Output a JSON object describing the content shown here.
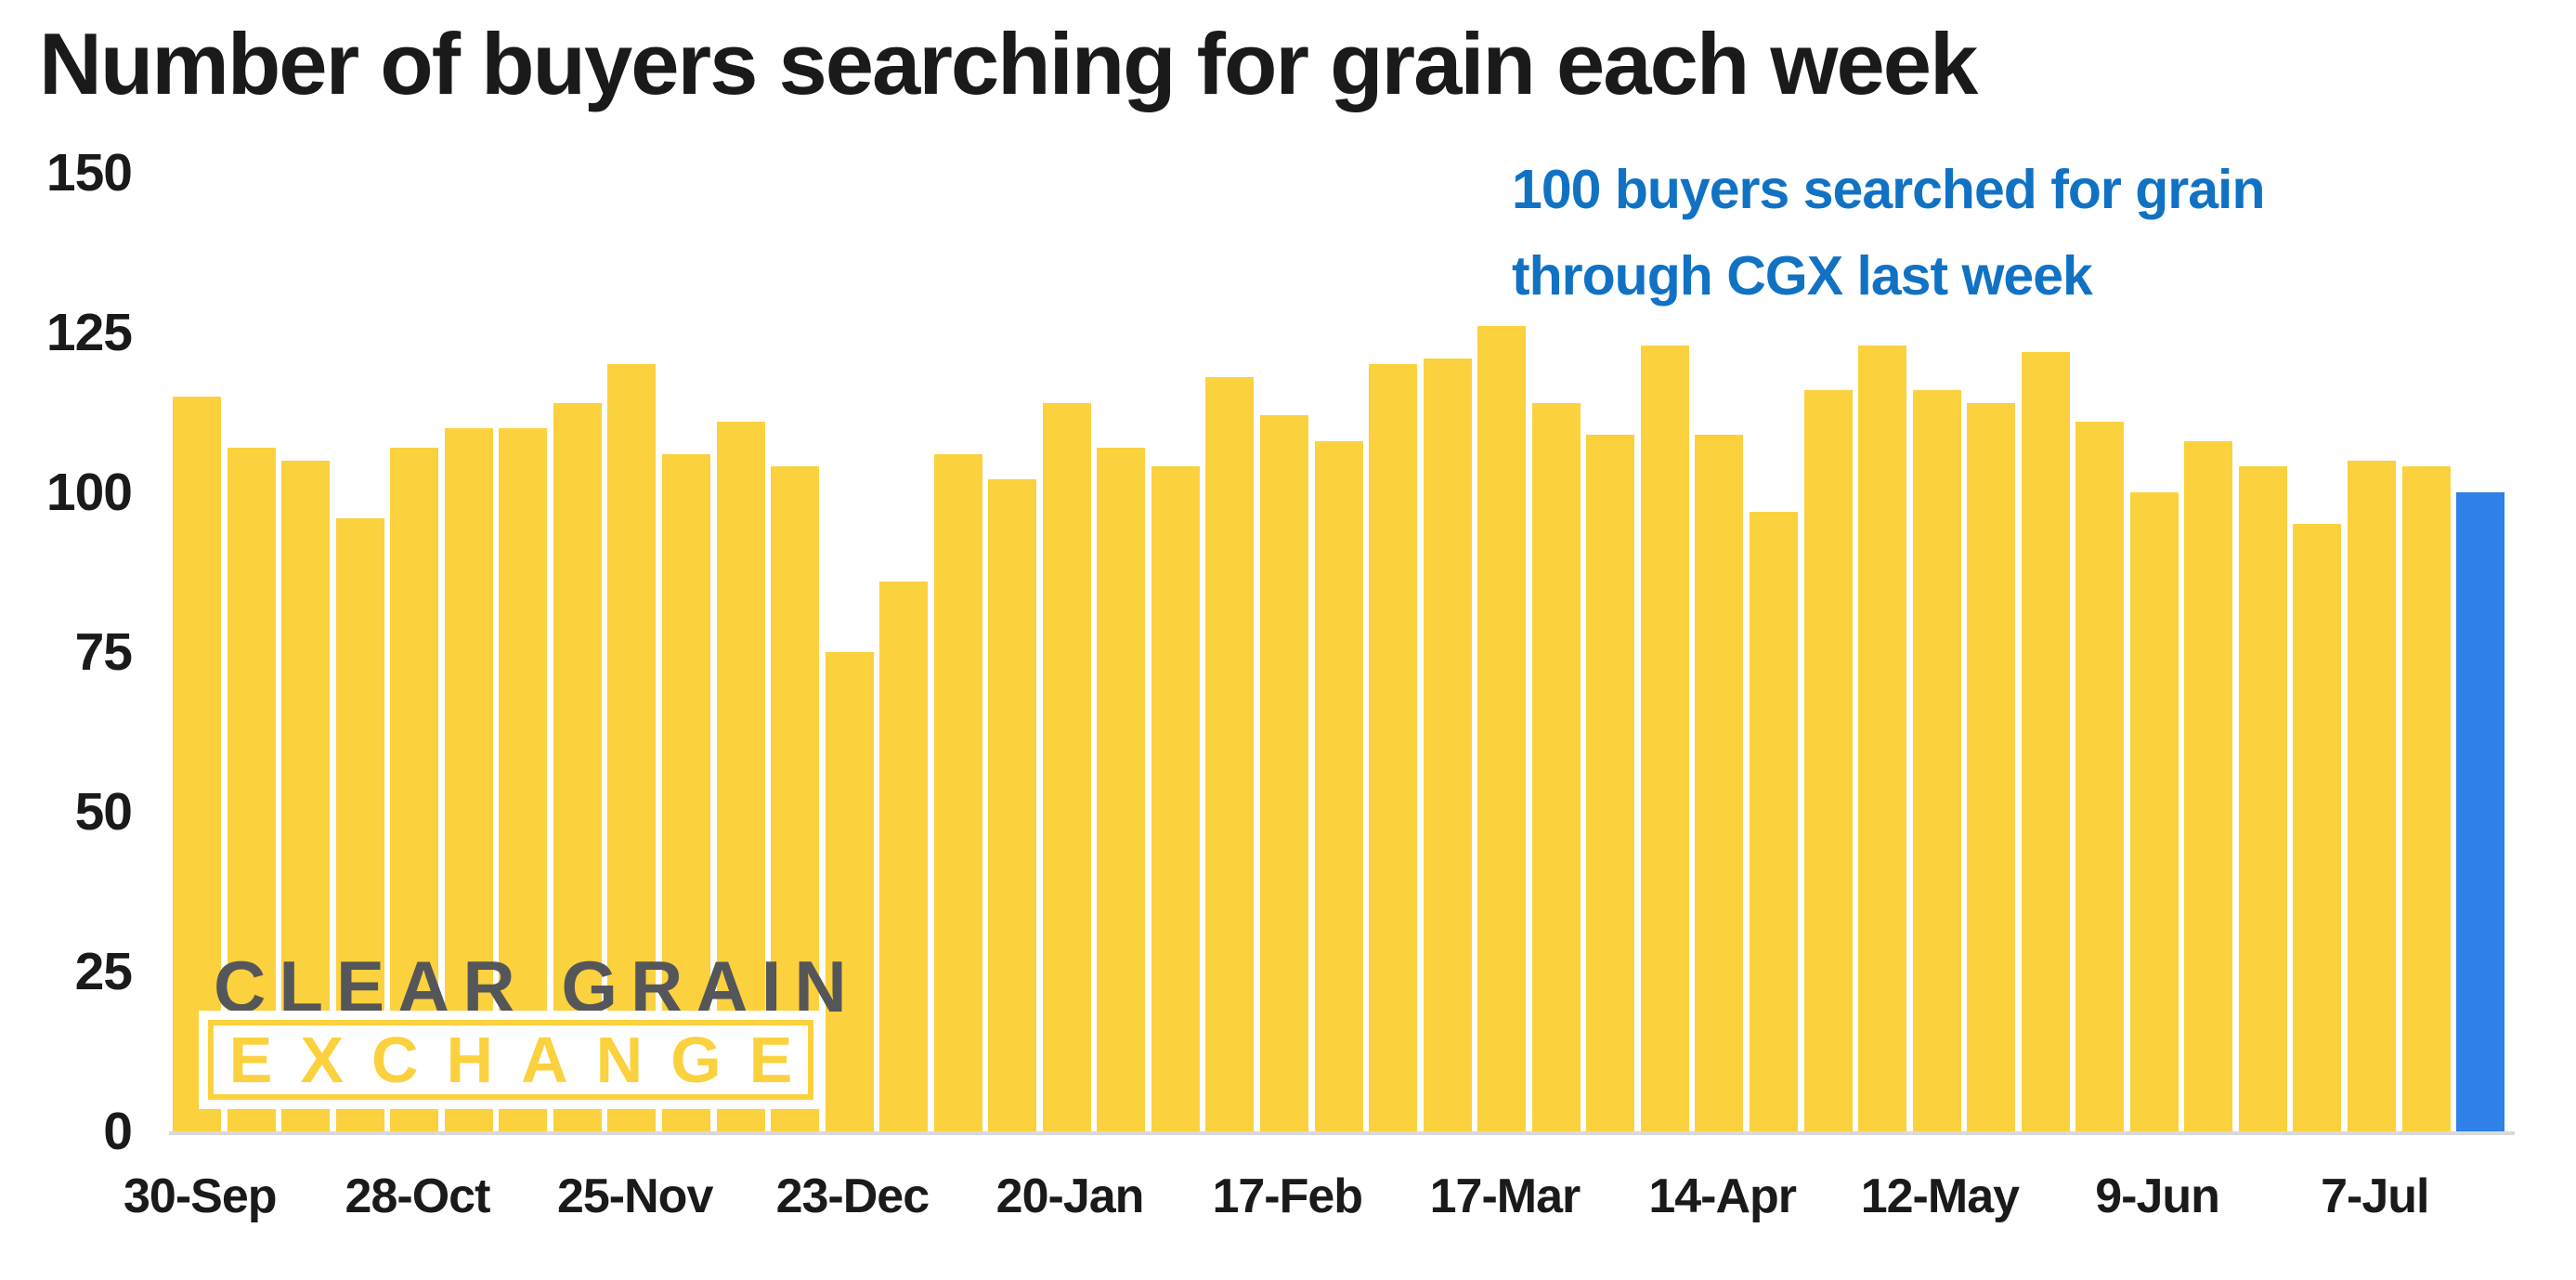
{
  "chart_data": {
    "type": "bar",
    "title": "Number of buyers searching for grain each week",
    "annotation_lines": [
      "100 buyers searched for grain",
      "through CGX last week"
    ],
    "xlabel": "",
    "ylabel": "",
    "ylim": [
      0,
      150
    ],
    "y_ticks": [
      0,
      25,
      50,
      75,
      100,
      125,
      150
    ],
    "grid": false,
    "legend": false,
    "values": [
      115,
      107,
      105,
      96,
      107,
      110,
      110,
      114,
      120,
      106,
      111,
      104,
      75,
      86,
      106,
      102,
      114,
      107,
      104,
      118,
      112,
      108,
      120,
      121,
      126,
      114,
      109,
      123,
      109,
      97,
      116,
      123,
      116,
      114,
      122,
      111,
      100,
      108,
      104,
      95,
      105,
      104,
      100
    ],
    "x_ticks": [
      {
        "bar_index": 0,
        "label": "30-Sep"
      },
      {
        "bar_index": 4,
        "label": "28-Oct"
      },
      {
        "bar_index": 8,
        "label": "25-Nov"
      },
      {
        "bar_index": 12,
        "label": "23-Dec"
      },
      {
        "bar_index": 16,
        "label": "20-Jan"
      },
      {
        "bar_index": 20,
        "label": "17-Feb"
      },
      {
        "bar_index": 24,
        "label": "17-Mar"
      },
      {
        "bar_index": 28,
        "label": "14-Apr"
      },
      {
        "bar_index": 32,
        "label": "12-May"
      },
      {
        "bar_index": 36,
        "label": "9-Jun"
      },
      {
        "bar_index": 40,
        "label": "7-Jul"
      },
      {
        "bar_index": 42,
        "label": ""
      }
    ],
    "highlight_index": 42,
    "highlight_value": 100,
    "bar_color": "#FBD13E",
    "highlight_color": "#2F80E8"
  },
  "logo": {
    "line1": "CLEAR GRAIN",
    "line2": "EXCHANGE"
  },
  "colors": {
    "bar_yellow": "#FBD13E",
    "bar_blue": "#2F80E8",
    "callout_blue": "#1172C4",
    "axis_line_gray": "#D9D9D9",
    "title_text": "#1A1A1A",
    "logo_gray": "#55565A",
    "background": "#FFFFFF"
  }
}
